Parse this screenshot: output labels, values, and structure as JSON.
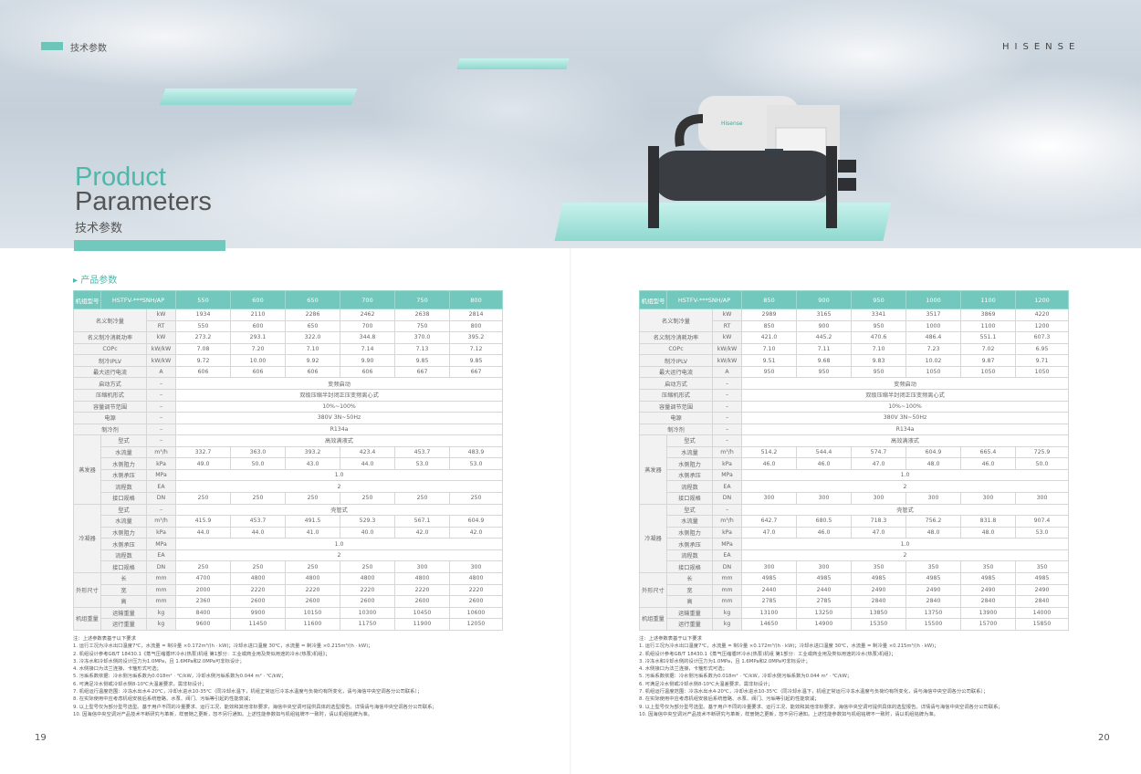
{
  "header": {
    "section_tag": "技术参数",
    "brand": "HISENSE",
    "title_en_1": "Product",
    "title_en_2": "Parameters",
    "title_cn": "技术参数",
    "product_logo": "Hisense"
  },
  "section_title": "产品参数",
  "colors": {
    "accent": "#72c8bc",
    "title_green": "#4fb7aa"
  },
  "tables": [
    {
      "head": {
        "label": "机组型号",
        "model": "HSTFV-***SNH/AP",
        "cols": [
          "550",
          "600",
          "650",
          "700",
          "750",
          "800"
        ]
      },
      "rows": [
        {
          "g": "名义制冷量",
          "u": "kW",
          "v": [
            "1934",
            "2110",
            "2286",
            "2462",
            "2638",
            "2814"
          ]
        },
        {
          "g": "名义制冷量",
          "u": "RT",
          "v": [
            "550",
            "600",
            "650",
            "700",
            "750",
            "800"
          ]
        },
        {
          "l": "名义制冷消耗功率",
          "u": "kW",
          "v": [
            "273.2",
            "293.1",
            "322.0",
            "344.8",
            "370.0",
            "395.2"
          ]
        },
        {
          "l": "COPc",
          "u": "kW/kW",
          "v": [
            "7.08",
            "7.20",
            "7.10",
            "7.14",
            "7.13",
            "7.12"
          ]
        },
        {
          "l": "制冷IPLV",
          "u": "kW/kW",
          "v": [
            "9.72",
            "10.00",
            "9.92",
            "9.90",
            "9.85",
            "9.85"
          ]
        },
        {
          "l": "最大运行电流",
          "u": "A",
          "v": [
            "606",
            "606",
            "606",
            "606",
            "667",
            "667"
          ]
        },
        {
          "l": "启动方式",
          "u": "–",
          "v": "变频启动"
        },
        {
          "l": "压缩机形式",
          "u": "–",
          "v": "双级压缩半封闭正压变频离心式"
        },
        {
          "l": "容量调节范围",
          "u": "–",
          "v": "10%~100%"
        },
        {
          "l": "电源",
          "u": "–",
          "v": "380V 3N~50Hz"
        },
        {
          "l": "制冷剂",
          "u": "–",
          "v": "R134a"
        },
        {
          "g": "蒸发器",
          "l": "型式",
          "u": "–",
          "v": "高效满液式"
        },
        {
          "g": "蒸发器",
          "l": "水流量",
          "u": "m³/h",
          "v": [
            "332.7",
            "363.0",
            "393.2",
            "423.4",
            "453.7",
            "483.9"
          ]
        },
        {
          "g": "蒸发器",
          "l": "水侧阻力",
          "u": "kPa",
          "v": [
            "49.0",
            "50.0",
            "43.0",
            "44.0",
            "53.0",
            "53.0"
          ]
        },
        {
          "g": "蒸发器",
          "l": "水侧承压",
          "u": "MPa",
          "v": "1.0"
        },
        {
          "g": "蒸发器",
          "l": "流程数",
          "u": "EA",
          "v": "2"
        },
        {
          "g": "蒸发器",
          "l": "接口规格",
          "u": "DN",
          "v": [
            "250",
            "250",
            "250",
            "250",
            "250",
            "250"
          ]
        },
        {
          "g": "冷凝器",
          "l": "型式",
          "u": "–",
          "v": "壳管式"
        },
        {
          "g": "冷凝器",
          "l": "水流量",
          "u": "m³/h",
          "v": [
            "415.9",
            "453.7",
            "491.5",
            "529.3",
            "567.1",
            "604.9"
          ]
        },
        {
          "g": "冷凝器",
          "l": "水侧阻力",
          "u": "kPa",
          "v": [
            "44.0",
            "44.0",
            "41.0",
            "40.0",
            "42.0",
            "42.0"
          ]
        },
        {
          "g": "冷凝器",
          "l": "水侧承压",
          "u": "MPa",
          "v": "1.0"
        },
        {
          "g": "冷凝器",
          "l": "流程数",
          "u": "EA",
          "v": "2"
        },
        {
          "g": "冷凝器",
          "l": "接口规格",
          "u": "DN",
          "v": [
            "250",
            "250",
            "250",
            "250",
            "300",
            "300"
          ]
        },
        {
          "g": "外形尺寸",
          "l": "长",
          "u": "mm",
          "v": [
            "4700",
            "4800",
            "4800",
            "4800",
            "4800",
            "4800"
          ]
        },
        {
          "g": "外形尺寸",
          "l": "宽",
          "u": "mm",
          "v": [
            "2000",
            "2220",
            "2220",
            "2220",
            "2220",
            "2220"
          ]
        },
        {
          "g": "外形尺寸",
          "l": "高",
          "u": "mm",
          "v": [
            "2360",
            "2600",
            "2600",
            "2600",
            "2600",
            "2600"
          ]
        },
        {
          "g": "机组重量",
          "l": "运输重量",
          "u": "kg",
          "v": [
            "8400",
            "9900",
            "10150",
            "10300",
            "10450",
            "10600"
          ]
        },
        {
          "g": "机组重量",
          "l": "运行重量",
          "u": "kg",
          "v": [
            "9600",
            "11450",
            "11600",
            "11750",
            "11900",
            "12050"
          ]
        }
      ]
    },
    {
      "head": {
        "label": "机组型号",
        "model": "HSTFV-***SNH/AP",
        "cols": [
          "850",
          "900",
          "950",
          "1000",
          "1100",
          "1200"
        ]
      },
      "rows": [
        {
          "g": "名义制冷量",
          "u": "kW",
          "v": [
            "2989",
            "3165",
            "3341",
            "3517",
            "3869",
            "4220"
          ]
        },
        {
          "g": "名义制冷量",
          "u": "RT",
          "v": [
            "850",
            "900",
            "950",
            "1000",
            "1100",
            "1200"
          ]
        },
        {
          "l": "名义制冷消耗功率",
          "u": "kW",
          "v": [
            "421.0",
            "445.2",
            "470.6",
            "486.4",
            "551.1",
            "607.3"
          ]
        },
        {
          "l": "COPc",
          "u": "kW/kW",
          "v": [
            "7.10",
            "7.11",
            "7.10",
            "7.23",
            "7.02",
            "6.95"
          ]
        },
        {
          "l": "制冷IPLV",
          "u": "kW/kW",
          "v": [
            "9.51",
            "9.68",
            "9.83",
            "10.02",
            "9.87",
            "9.71"
          ]
        },
        {
          "l": "最大运行电流",
          "u": "A",
          "v": [
            "950",
            "950",
            "950",
            "1050",
            "1050",
            "1050"
          ]
        },
        {
          "l": "启动方式",
          "u": "–",
          "v": "变频启动"
        },
        {
          "l": "压缩机形式",
          "u": "–",
          "v": "双级压缩半封闭正压变频离心式"
        },
        {
          "l": "容量调节范围",
          "u": "–",
          "v": "10%~100%"
        },
        {
          "l": "电源",
          "u": "–",
          "v": "380V 3N~50Hz"
        },
        {
          "l": "制冷剂",
          "u": "–",
          "v": "R134a"
        },
        {
          "g": "蒸发器",
          "l": "型式",
          "u": "–",
          "v": "高效满液式"
        },
        {
          "g": "蒸发器",
          "l": "水流量",
          "u": "m³/h",
          "v": [
            "514.2",
            "544.4",
            "574.7",
            "604.9",
            "665.4",
            "725.9"
          ]
        },
        {
          "g": "蒸发器",
          "l": "水侧阻力",
          "u": "kPa",
          "v": [
            "46.0",
            "46.0",
            "47.0",
            "48.0",
            "46.0",
            "50.0"
          ]
        },
        {
          "g": "蒸发器",
          "l": "水侧承压",
          "u": "MPa",
          "v": "1.0"
        },
        {
          "g": "蒸发器",
          "l": "流程数",
          "u": "EA",
          "v": "2"
        },
        {
          "g": "蒸发器",
          "l": "接口规格",
          "u": "DN",
          "v": [
            "300",
            "300",
            "300",
            "300",
            "300",
            "300"
          ]
        },
        {
          "g": "冷凝器",
          "l": "型式",
          "u": "–",
          "v": "壳管式"
        },
        {
          "g": "冷凝器",
          "l": "水流量",
          "u": "m³/h",
          "v": [
            "642.7",
            "680.5",
            "718.3",
            "756.2",
            "831.8",
            "907.4"
          ]
        },
        {
          "g": "冷凝器",
          "l": "水侧阻力",
          "u": "kPa",
          "v": [
            "47.0",
            "46.0",
            "47.0",
            "48.0",
            "48.0",
            "53.0"
          ]
        },
        {
          "g": "冷凝器",
          "l": "水侧承压",
          "u": "MPa",
          "v": "1.0"
        },
        {
          "g": "冷凝器",
          "l": "流程数",
          "u": "EA",
          "v": "2"
        },
        {
          "g": "冷凝器",
          "l": "接口规格",
          "u": "DN",
          "v": [
            "300",
            "300",
            "350",
            "350",
            "350",
            "350"
          ]
        },
        {
          "g": "外形尺寸",
          "l": "长",
          "u": "mm",
          "v": [
            "4985",
            "4985",
            "4985",
            "4985",
            "4985",
            "4985"
          ]
        },
        {
          "g": "外形尺寸",
          "l": "宽",
          "u": "mm",
          "v": [
            "2440",
            "2440",
            "2490",
            "2490",
            "2490",
            "2490"
          ]
        },
        {
          "g": "外形尺寸",
          "l": "高",
          "u": "mm",
          "v": [
            "2785",
            "2785",
            "2840",
            "2840",
            "2840",
            "2840"
          ]
        },
        {
          "g": "机组重量",
          "l": "运输重量",
          "u": "kg",
          "v": [
            "13100",
            "13250",
            "13850",
            "13750",
            "13900",
            "14000"
          ]
        },
        {
          "g": "机组重量",
          "l": "运行重量",
          "u": "kg",
          "v": [
            "14650",
            "14900",
            "15350",
            "15500",
            "15700",
            "15850"
          ]
        }
      ]
    }
  ],
  "notes": [
    "注：上述参数表基于以下要求",
    "1. 运行工况为冷水出口温度7℃，水流量 = 制冷量 ×0.172m³/(h · kW)；冷却水进口温度 30℃，水流量 = 制冷量 ×0.215m³/(h · kW)；",
    "2. 机组设计参考GB/T 18430.1《蒸气压缩循环冷水(热泵)机组 第1部分：工业或商业用及类似用途的冷水(热泵)机组》；",
    "3. 冷冻水和冷却水侧的设计压力为1.0MPa，且 1.6MPa和2.0MPa可非标设计；",
    "4. 水侧接口为法兰连接，卡箍形式可选；",
    "5. 污垢系数依据：冷水侧污垢系数为0.018m² · ℃/kW，冷却水侧污垢系数为0.044 m² · ℃/kW；",
    "6. 可满足冷水侧或冷却水侧8-10℃大温差要求，需非标设计；",
    "7. 机组运行温度范围：冷冻水出水4-20℃，冷却水进水10-35℃（同冷却水温下，机组正常运行冷冻水温度与负荷均有所变化，请与海信中央空调各分公司联系）；",
    "8. 在实际使用中应考虑机组安装后系统管路、水泵、阀门、污垢等引起的性能衰减；",
    "9. 以上型号仅为部分型号选型。基于用户不同的冷量要求、运行工况、能效和其他非标要求，海信中央空调可提供具体的选型报告。详情请与海信中央空调各分公司联系；",
    "10. 因海信中央空调对产品技术不断研究与革新，样册随之更新，恕不另行通知。上述性能参数如与机组铭牌不一致时，请以机组铭牌为准。"
  ],
  "page_numbers": [
    "19",
    "20"
  ]
}
